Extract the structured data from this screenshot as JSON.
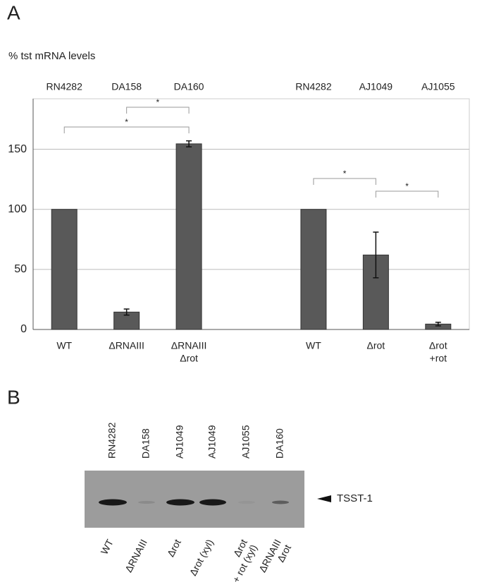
{
  "panel_labels": [
    "A",
    "B"
  ],
  "chart_data": {
    "type": "bar",
    "ylabel": "% tst mRNA levels",
    "strains": [
      "RN4282",
      "DA158",
      "DA160",
      null,
      "RN4282",
      "AJ1049",
      "AJ1055"
    ],
    "categories": [
      [
        "WT"
      ],
      [
        "ΔRNAIII"
      ],
      [
        "ΔRNAIII",
        "Δrot"
      ],
      null,
      [
        "WT"
      ],
      [
        "Δrot"
      ],
      [
        "Δrot",
        "+rot"
      ]
    ],
    "values": [
      100,
      14.5,
      154.5,
      null,
      100,
      62,
      4.5
    ],
    "errors": [
      null,
      2.5,
      2.5,
      null,
      null,
      19,
      1.5
    ],
    "color": "#595959",
    "ylim": [
      0,
      192
    ],
    "yticks": [
      0,
      50,
      100,
      150
    ],
    "grid": true,
    "brackets": [
      {
        "from": 0,
        "to": 2,
        "label": "*"
      },
      {
        "from": 1,
        "to": 2,
        "label": "*"
      },
      {
        "from": 4,
        "to": 5,
        "label": "*"
      },
      {
        "from": 5,
        "to": 6,
        "label": "*"
      }
    ]
  },
  "blot": {
    "strains": [
      "RN4282",
      "DA158",
      "AJ1049",
      "AJ1049",
      "AJ1055",
      "DA160"
    ],
    "genotypes": [
      [
        "WT"
      ],
      [
        "ΔRNAIII"
      ],
      [
        "Δrot"
      ],
      [
        "Δrot (xyl)"
      ],
      [
        "Δrot",
        "+ rot (xyl)"
      ],
      [
        "ΔRNAIII",
        "Δrot"
      ]
    ],
    "band_label": "TSST-1"
  }
}
